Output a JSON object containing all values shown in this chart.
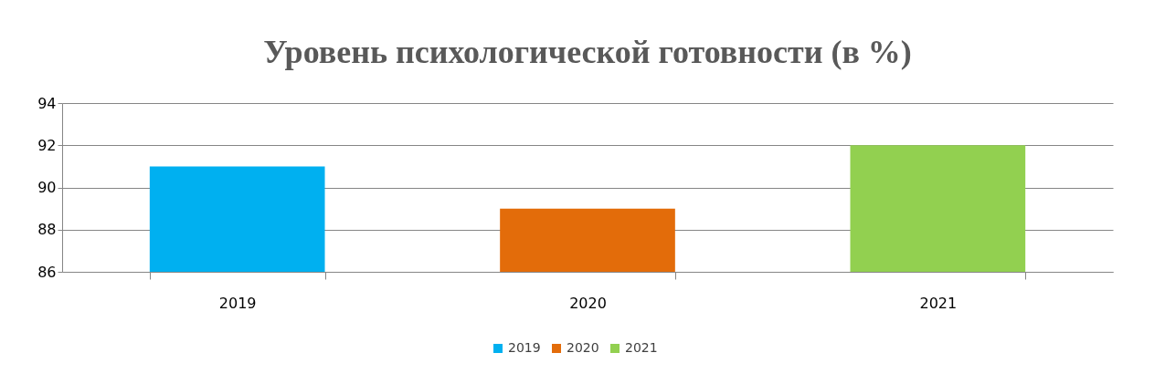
{
  "chart_data": {
    "type": "bar",
    "title": "Уровень психологической готовности (в %)",
    "categories": [
      "2019",
      "2020",
      "2021"
    ],
    "series": [
      {
        "name": "2019",
        "color": "#00b0f0",
        "values": [
          91,
          null,
          null
        ]
      },
      {
        "name": "2020",
        "color": "#e36c0a",
        "values": [
          null,
          89,
          null
        ]
      },
      {
        "name": "2021",
        "color": "#92d050",
        "values": [
          null,
          null,
          92
        ]
      }
    ],
    "ylim": [
      86,
      94
    ],
    "yticks": [
      86,
      88,
      90,
      92,
      94
    ],
    "grid": "y",
    "legend": "bottom"
  }
}
